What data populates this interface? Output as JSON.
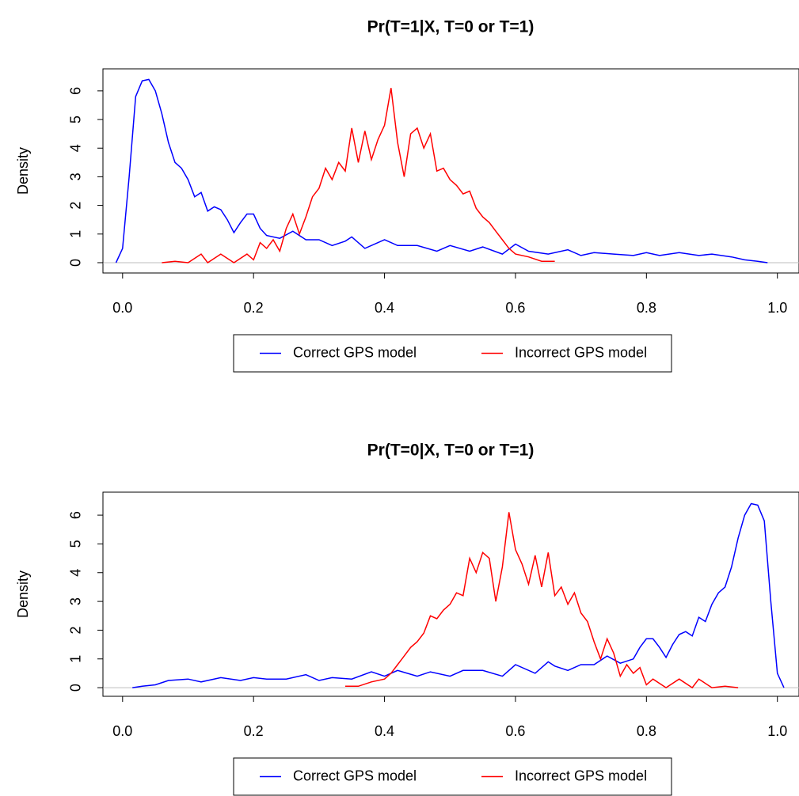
{
  "chart_data": [
    {
      "type": "line",
      "title": "Pr(T=1|X, T=0 or T=1)",
      "ylabel": "Density",
      "legend": "bottom",
      "xlim": [
        -0.03,
        1.033
      ],
      "ylim": [
        -0.36,
        6.77
      ],
      "xticks": [
        {
          "value": 0,
          "label": "0.0"
        },
        {
          "value": 0.2,
          "label": "0.2"
        },
        {
          "value": 0.4,
          "label": "0.4"
        },
        {
          "value": 0.6,
          "label": "0.6"
        },
        {
          "value": 0.8,
          "label": "0.8"
        },
        {
          "value": 1,
          "label": "1.0"
        }
      ],
      "yticks": [
        0,
        1,
        2,
        3,
        4,
        5,
        6
      ],
      "series": [
        {
          "name": "Correct GPS model",
          "color": "#0000ff",
          "x": [
            -0.01,
            0,
            0.01,
            0.02,
            0.03,
            0.04,
            0.05,
            0.06,
            0.07,
            0.08,
            0.09,
            0.1,
            0.11,
            0.12,
            0.13,
            0.14,
            0.15,
            0.16,
            0.17,
            0.18,
            0.19,
            0.2,
            0.21,
            0.22,
            0.24,
            0.26,
            0.28,
            0.3,
            0.32,
            0.34,
            0.35,
            0.37,
            0.4,
            0.42,
            0.45,
            0.48,
            0.5,
            0.53,
            0.55,
            0.58,
            0.6,
            0.62,
            0.65,
            0.68,
            0.7,
            0.72,
            0.75,
            0.78,
            0.8,
            0.82,
            0.85,
            0.88,
            0.9,
            0.93,
            0.95,
            0.97,
            0.985
          ],
          "values": [
            0,
            0.5,
            3.0,
            5.8,
            6.35,
            6.4,
            6.0,
            5.2,
            4.2,
            3.5,
            3.3,
            2.9,
            2.3,
            2.45,
            1.8,
            1.95,
            1.85,
            1.5,
            1.05,
            1.4,
            1.7,
            1.7,
            1.2,
            0.95,
            0.85,
            1.1,
            0.8,
            0.8,
            0.6,
            0.75,
            0.9,
            0.5,
            0.8,
            0.6,
            0.6,
            0.4,
            0.6,
            0.4,
            0.55,
            0.3,
            0.65,
            0.4,
            0.3,
            0.45,
            0.25,
            0.35,
            0.3,
            0.25,
            0.35,
            0.25,
            0.35,
            0.25,
            0.3,
            0.2,
            0.1,
            0.05,
            0
          ]
        },
        {
          "name": "Incorrect GPS model",
          "color": "#ff0000",
          "x": [
            0.06,
            0.08,
            0.1,
            0.12,
            0.13,
            0.15,
            0.17,
            0.19,
            0.2,
            0.21,
            0.22,
            0.23,
            0.24,
            0.25,
            0.26,
            0.27,
            0.28,
            0.29,
            0.3,
            0.31,
            0.32,
            0.33,
            0.34,
            0.35,
            0.36,
            0.37,
            0.38,
            0.39,
            0.4,
            0.41,
            0.42,
            0.43,
            0.44,
            0.45,
            0.46,
            0.47,
            0.48,
            0.49,
            0.5,
            0.51,
            0.52,
            0.53,
            0.54,
            0.55,
            0.56,
            0.57,
            0.58,
            0.59,
            0.6,
            0.62,
            0.64,
            0.66
          ],
          "values": [
            0,
            0.05,
            0,
            0.3,
            0,
            0.3,
            0,
            0.3,
            0.1,
            0.7,
            0.5,
            0.8,
            0.4,
            1.2,
            1.7,
            1.0,
            1.6,
            2.3,
            2.6,
            3.3,
            2.9,
            3.5,
            3.2,
            4.7,
            3.5,
            4.6,
            3.6,
            4.3,
            4.8,
            6.1,
            4.2,
            3.0,
            4.5,
            4.7,
            4.0,
            4.5,
            3.2,
            3.3,
            2.9,
            2.7,
            2.4,
            2.5,
            1.9,
            1.6,
            1.4,
            1.1,
            0.8,
            0.5,
            0.3,
            0.2,
            0.05,
            0.05
          ]
        }
      ]
    },
    {
      "type": "line",
      "title": "Pr(T=0|X, T=0 or T=1)",
      "ylabel": "Density",
      "legend": "bottom",
      "xlim": [
        -0.03,
        1.033
      ],
      "ylim": [
        -0.3,
        6.8
      ],
      "xticks": [
        {
          "value": 0,
          "label": "0.0"
        },
        {
          "value": 0.2,
          "label": "0.2"
        },
        {
          "value": 0.4,
          "label": "0.4"
        },
        {
          "value": 0.6,
          "label": "0.6"
        },
        {
          "value": 0.8,
          "label": "0.8"
        },
        {
          "value": 1,
          "label": "1.0"
        }
      ],
      "yticks": [
        0,
        1,
        2,
        3,
        4,
        5,
        6
      ],
      "series": [
        {
          "name": "Correct GPS model",
          "color": "#0000ff",
          "x": [
            0.015,
            0.03,
            0.05,
            0.07,
            0.1,
            0.12,
            0.15,
            0.18,
            0.2,
            0.22,
            0.25,
            0.28,
            0.3,
            0.32,
            0.35,
            0.38,
            0.4,
            0.42,
            0.45,
            0.47,
            0.5,
            0.52,
            0.55,
            0.58,
            0.6,
            0.63,
            0.65,
            0.66,
            0.68,
            0.7,
            0.72,
            0.74,
            0.76,
            0.78,
            0.79,
            0.8,
            0.81,
            0.82,
            0.83,
            0.84,
            0.85,
            0.86,
            0.87,
            0.88,
            0.89,
            0.9,
            0.91,
            0.92,
            0.93,
            0.94,
            0.95,
            0.96,
            0.97,
            0.98,
            0.99,
            1.0,
            1.01
          ],
          "values": [
            0,
            0.05,
            0.1,
            0.25,
            0.3,
            0.2,
            0.35,
            0.25,
            0.35,
            0.3,
            0.3,
            0.45,
            0.25,
            0.35,
            0.3,
            0.55,
            0.4,
            0.6,
            0.4,
            0.55,
            0.4,
            0.6,
            0.6,
            0.4,
            0.8,
            0.5,
            0.9,
            0.75,
            0.6,
            0.8,
            0.8,
            1.1,
            0.85,
            1.0,
            1.4,
            1.7,
            1.7,
            1.4,
            1.05,
            1.5,
            1.85,
            1.95,
            1.8,
            2.45,
            2.3,
            2.9,
            3.3,
            3.5,
            4.2,
            5.2,
            6.0,
            6.4,
            6.35,
            5.8,
            3.0,
            0.5,
            0
          ]
        },
        {
          "name": "Incorrect GPS model",
          "color": "#ff0000",
          "x": [
            0.34,
            0.36,
            0.38,
            0.4,
            0.41,
            0.42,
            0.43,
            0.44,
            0.45,
            0.46,
            0.47,
            0.48,
            0.49,
            0.5,
            0.51,
            0.52,
            0.53,
            0.54,
            0.55,
            0.56,
            0.57,
            0.58,
            0.59,
            0.6,
            0.61,
            0.62,
            0.63,
            0.64,
            0.65,
            0.66,
            0.67,
            0.68,
            0.69,
            0.7,
            0.71,
            0.72,
            0.73,
            0.74,
            0.75,
            0.76,
            0.77,
            0.78,
            0.79,
            0.8,
            0.81,
            0.83,
            0.85,
            0.87,
            0.88,
            0.9,
            0.92,
            0.94
          ],
          "values": [
            0.05,
            0.05,
            0.2,
            0.3,
            0.5,
            0.8,
            1.1,
            1.4,
            1.6,
            1.9,
            2.5,
            2.4,
            2.7,
            2.9,
            3.3,
            3.2,
            4.5,
            4.0,
            4.7,
            4.5,
            3.0,
            4.2,
            6.1,
            4.8,
            4.3,
            3.6,
            4.6,
            3.5,
            4.7,
            3.2,
            3.5,
            2.9,
            3.3,
            2.6,
            2.3,
            1.6,
            1.0,
            1.7,
            1.2,
            0.4,
            0.8,
            0.5,
            0.7,
            0.1,
            0.3,
            0,
            0.3,
            0,
            0.3,
            0,
            0.05,
            0
          ]
        }
      ]
    }
  ]
}
